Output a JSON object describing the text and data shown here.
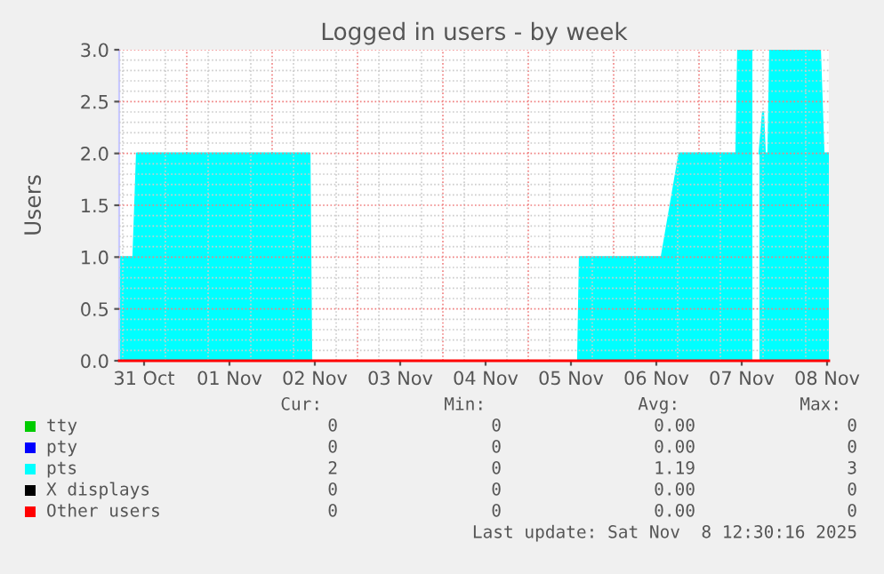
{
  "chart_data": {
    "type": "area",
    "title": "Logged in users - by week",
    "ylabel": "Users",
    "xlim": [
      "2025-10-31T05:00",
      "2025-11-08T12:30"
    ],
    "xticks": [
      {
        "value": "2025-10-31T12:00",
        "label": "31 Oct"
      },
      {
        "value": "2025-11-01T12:00",
        "label": "01 Nov"
      },
      {
        "value": "2025-11-02T12:00",
        "label": "02 Nov"
      },
      {
        "value": "2025-11-03T12:00",
        "label": "03 Nov"
      },
      {
        "value": "2025-11-04T12:00",
        "label": "04 Nov"
      },
      {
        "value": "2025-11-05T12:00",
        "label": "05 Nov"
      },
      {
        "value": "2025-11-06T12:00",
        "label": "06 Nov"
      },
      {
        "value": "2025-11-07T12:00",
        "label": "07 Nov"
      },
      {
        "value": "2025-11-08T12:00",
        "label": "08 Nov"
      }
    ],
    "ylim": [
      0,
      3
    ],
    "yticks": [
      {
        "value": 0,
        "label": "0.0"
      },
      {
        "value": 0.5,
        "label": "0.5"
      },
      {
        "value": 1,
        "label": "1.0"
      },
      {
        "value": 1.5,
        "label": "1.5"
      },
      {
        "value": 2,
        "label": "2.0"
      },
      {
        "value": 2.5,
        "label": "2.5"
      },
      {
        "value": 3,
        "label": "3.0"
      }
    ],
    "grid": true,
    "legend": "bottom",
    "series": [
      {
        "name": "tty",
        "color": "#00cc00"
      },
      {
        "name": "pty",
        "color": "#0000ff"
      },
      {
        "name": "pts",
        "color": "#00ffff",
        "x": [
          "2025-10-31T05:00",
          "2025-10-31T09:00",
          "2025-10-31T10:00",
          "2025-11-02T10:30",
          "2025-11-02T11:00",
          "2025-11-05T14:00",
          "2025-11-05T14:30",
          "2025-11-06T13:30",
          "2025-11-06T18:30",
          "2025-11-07T10:30",
          "2025-11-07T11:00",
          "2025-11-07T15:00",
          "2025-11-07T16:00",
          "2025-11-07T17:00",
          "2025-11-07T18:00",
          "2025-11-07T18:30",
          "2025-11-07T19:30",
          "2025-11-07T20:00",
          "2025-11-08T10:00",
          "2025-11-08T11:00",
          "2025-11-08T12:30"
        ],
        "values": [
          1,
          1,
          2,
          2,
          0,
          0,
          1,
          1,
          2,
          2,
          3,
          3,
          null,
          2,
          2.4,
          2,
          2,
          3,
          3,
          2,
          2
        ]
      },
      {
        "name": "X displays",
        "color": "#000000"
      },
      {
        "name": "Other users",
        "type": "line",
        "color": "#ff0000",
        "x": [
          "2025-10-31T05:00",
          "2025-11-08T12:30"
        ],
        "values": [
          0,
          0
        ]
      }
    ],
    "annotations": [
      "Cur:",
      "Min:",
      "Avg:",
      "Max:",
      "0",
      "0",
      "0.00",
      "0",
      "0",
      "0",
      "0.00",
      "0",
      "2",
      "0",
      "1.19",
      "3",
      "0",
      "0",
      "0.00",
      "0",
      "0",
      "0",
      "0.00",
      "0",
      "Last update: Sat Nov  8 12:30:16 2025"
    ]
  }
}
